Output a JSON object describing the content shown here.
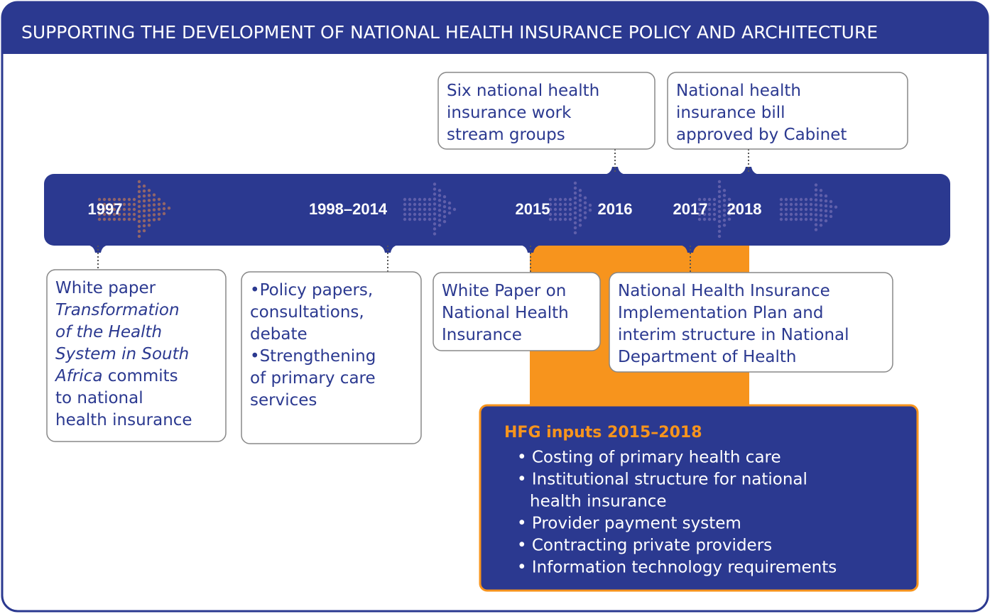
{
  "header": {
    "title": "SUPPORTING THE DEVELOPMENT OF NATIONAL HEALTH INSURANCE POLICY AND ARCHITECTURE"
  },
  "timeline": {
    "years": [
      "1997",
      "1998–2014",
      "2015",
      "2016",
      "2017",
      "2018"
    ]
  },
  "boxes": [
    {
      "lines": [
        [
          "Six national health"
        ],
        [
          "insurance work"
        ],
        [
          "stream groups"
        ]
      ]
    },
    {
      "lines": [
        [
          "National health"
        ],
        [
          "insurance bill"
        ],
        [
          "approved by Cabinet"
        ]
      ]
    },
    {
      "lines": [
        [
          "White paper"
        ],
        [
          {
            "text": "Transformation",
            "italic": true
          }
        ],
        [
          {
            "text": "of the Health",
            "italic": true
          }
        ],
        [
          {
            "text": "System in South",
            "italic": true
          }
        ],
        [
          {
            "text": "Africa",
            "italic": true
          },
          " commits"
        ],
        [
          "to national"
        ],
        [
          "health insurance"
        ]
      ]
    },
    {
      "lines": [
        [
          "•Policy papers,"
        ],
        [
          " consultations,"
        ],
        [
          " debate"
        ],
        [
          "•Strengthening"
        ],
        [
          " of primary care"
        ],
        [
          " services"
        ]
      ]
    },
    {
      "lines": [
        [
          "White Paper on"
        ],
        [
          "National Health"
        ],
        [
          "Insurance"
        ]
      ]
    },
    {
      "lines": [
        [
          "National Health Insurance"
        ],
        [
          "Implementation Plan and"
        ],
        [
          "interim structure in National"
        ],
        [
          "Department of Health"
        ]
      ]
    }
  ],
  "inputs": {
    "title": "HFG inputs 2015–2018",
    "items": [
      [
        "• Costing of primary health care"
      ],
      [
        "• Institutional structure for national",
        "health insurance"
      ],
      [
        "• Provider payment system"
      ],
      [
        "• Contracting private providers"
      ],
      [
        "• Information technology requirements"
      ]
    ]
  }
}
